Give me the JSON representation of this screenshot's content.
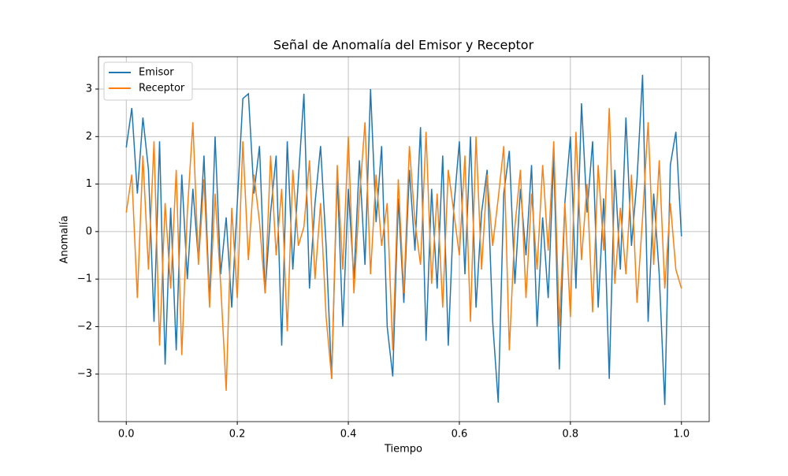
{
  "chart_data": {
    "type": "line",
    "title": "Señal de Anomalía del Emisor y Receptor",
    "x_label": "Tiempo",
    "y_label": "Anomalía",
    "x": [
      0,
      0.01,
      0.02,
      0.03,
      0.04,
      0.05,
      0.06,
      0.07,
      0.08,
      0.09,
      0.1,
      0.11,
      0.12,
      0.13,
      0.14,
      0.15,
      0.16,
      0.17,
      0.18,
      0.19,
      0.2,
      0.21,
      0.22,
      0.23,
      0.24,
      0.25,
      0.26,
      0.27,
      0.28,
      0.29,
      0.3,
      0.31,
      0.32,
      0.33,
      0.34,
      0.35,
      0.36,
      0.37,
      0.38,
      0.39,
      0.4,
      0.41,
      0.42,
      0.43,
      0.44,
      0.45,
      0.46,
      0.47,
      0.48,
      0.49,
      0.5,
      0.51,
      0.52,
      0.53,
      0.54,
      0.55,
      0.56,
      0.57,
      0.58,
      0.59,
      0.6,
      0.61,
      0.62,
      0.63,
      0.64,
      0.65,
      0.66,
      0.67,
      0.68,
      0.69,
      0.7,
      0.71,
      0.72,
      0.73,
      0.74,
      0.75,
      0.76,
      0.77,
      0.78,
      0.79,
      0.8,
      0.81,
      0.82,
      0.83,
      0.84,
      0.85,
      0.86,
      0.87,
      0.88,
      0.89,
      0.9,
      0.91,
      0.92,
      0.93,
      0.94,
      0.95,
      0.96,
      0.97,
      0.98,
      0.99,
      1
    ],
    "series": [
      {
        "name": "Emisor",
        "color": "#1f77b4",
        "values": [
          1.77,
          2.6,
          0.8,
          2.4,
          1.3,
          -1.9,
          1.9,
          -2.8,
          0.5,
          -2.5,
          1.2,
          -1.0,
          0.9,
          -0.6,
          1.6,
          -1.5,
          2.0,
          -0.9,
          0.3,
          -1.6,
          0.6,
          2.8,
          2.9,
          0.8,
          1.8,
          -1.3,
          0.4,
          1.6,
          -2.4,
          1.9,
          -0.8,
          1.1,
          2.9,
          -1.2,
          0.6,
          1.8,
          -0.3,
          -3.1,
          1.2,
          -2.0,
          0.9,
          -1.0,
          1.5,
          -0.7,
          3.0,
          0.2,
          1.8,
          -2.0,
          -3.05,
          0.7,
          -1.5,
          1.3,
          -0.4,
          2.2,
          -2.3,
          0.9,
          -1.2,
          1.6,
          -2.4,
          0.5,
          1.9,
          -0.9,
          2.0,
          -1.6,
          0.4,
          1.3,
          -1.9,
          -3.6,
          0.8,
          1.7,
          -1.1,
          0.9,
          -0.5,
          1.4,
          -2.0,
          0.3,
          -1.4,
          1.6,
          -2.9,
          0.6,
          2.0,
          -1.2,
          2.7,
          0.4,
          1.9,
          -1.6,
          0.7,
          -3.1,
          1.3,
          -0.8,
          2.4,
          -0.3,
          1.1,
          3.3,
          -1.9,
          0.8,
          -0.9,
          -3.65,
          1.4,
          2.1,
          -0.1
        ]
      },
      {
        "name": "Receptor",
        "color": "#ff7f0e",
        "values": [
          0.4,
          1.2,
          -1.4,
          1.6,
          -0.8,
          1.9,
          -2.4,
          0.6,
          -1.2,
          1.3,
          -2.6,
          0.4,
          2.3,
          -0.7,
          1.1,
          -1.6,
          0.8,
          -1.1,
          -3.35,
          0.5,
          -1.4,
          1.9,
          -0.6,
          1.2,
          0.2,
          -1.3,
          1.6,
          -0.5,
          0.9,
          -2.1,
          1.3,
          -0.3,
          0.1,
          1.5,
          -1.0,
          0.6,
          -1.8,
          -3.1,
          1.4,
          -0.8,
          2.0,
          -1.3,
          0.7,
          2.3,
          -0.9,
          1.2,
          -0.3,
          0.6,
          -2.5,
          1.1,
          -1.3,
          1.8,
          0.2,
          -0.7,
          2.1,
          -1.1,
          0.8,
          -1.6,
          1.3,
          0.4,
          -0.5,
          1.6,
          -1.9,
          2.0,
          -0.8,
          1.2,
          -0.3,
          0.7,
          1.8,
          -2.5,
          0.1,
          1.3,
          -1.4,
          0.8,
          -0.8,
          1.4,
          -0.4,
          1.9,
          -2.0,
          0.6,
          -1.8,
          2.1,
          -0.6,
          1.0,
          -1.7,
          1.4,
          -0.4,
          2.6,
          -1.1,
          0.5,
          -0.9,
          1.2,
          -1.5,
          0.3,
          2.3,
          -0.7,
          1.5,
          -1.2,
          0.6,
          -0.8,
          -1.2
        ]
      }
    ],
    "xlim": [
      -0.05,
      1.05
    ],
    "ylim": [
      -4.0,
      3.68
    ],
    "xticks": [
      {
        "value": 0,
        "label": "0.0"
      },
      0.2,
      0.4,
      0.6,
      0.8,
      {
        "value": 1,
        "label": "1.0"
      }
    ],
    "yticks": [
      {
        "value": -3,
        "label": "−3"
      },
      {
        "value": -2,
        "label": "−2"
      },
      {
        "value": -1,
        "label": "−1"
      },
      0,
      1,
      2,
      3
    ],
    "grid": true,
    "legend": "upper-left"
  }
}
